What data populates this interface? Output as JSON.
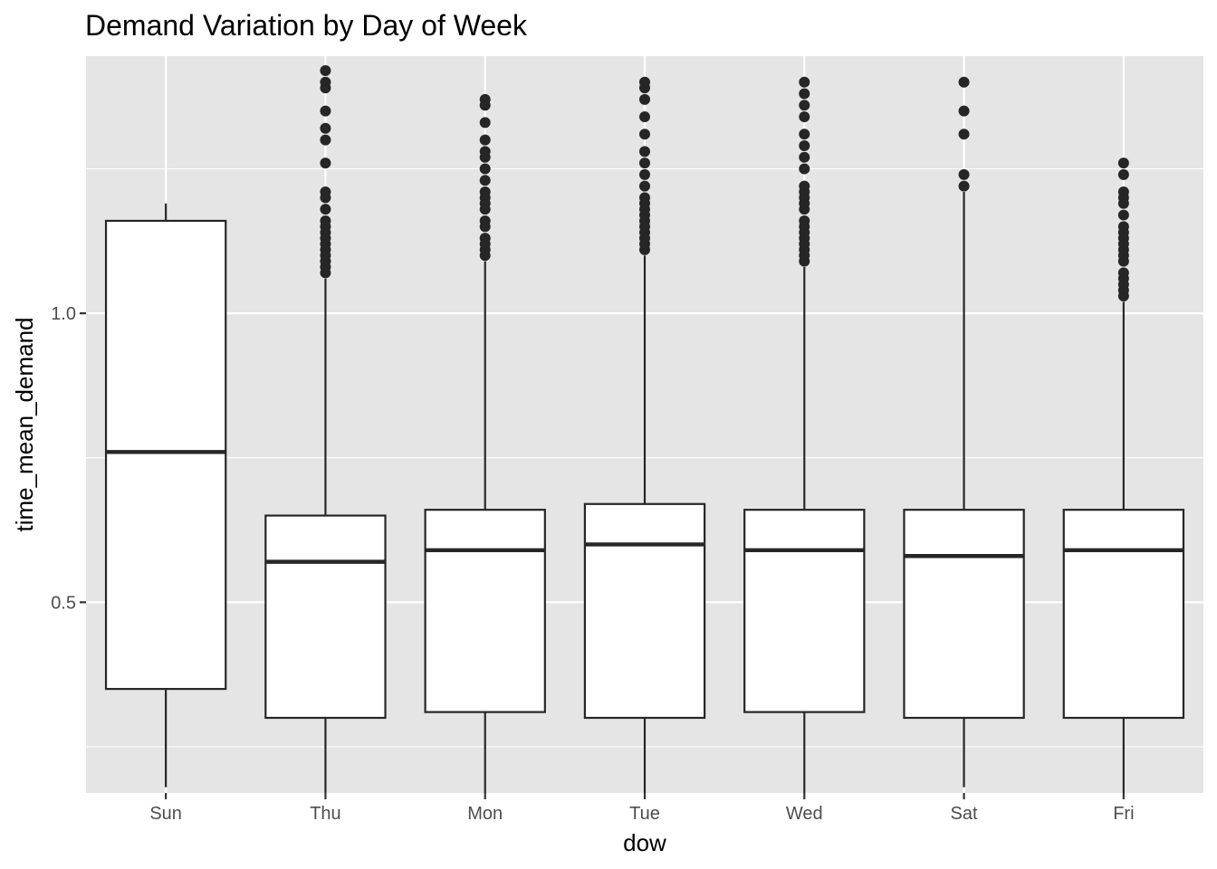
{
  "chart_data": {
    "type": "boxplot",
    "title": "Demand Variation by Day of Week",
    "xlabel": "dow",
    "ylabel": "time_mean_demand",
    "categories": [
      "Sun",
      "Thu",
      "Mon",
      "Tue",
      "Wed",
      "Sat",
      "Fri"
    ],
    "ylim": [
      0.17,
      1.445
    ],
    "yticks": [
      0.5,
      1.0
    ],
    "ytick_labels": [
      "0.5",
      "1.0"
    ],
    "grid": true,
    "legend": "none",
    "colors": {
      "panel_background": "#e5e5e5",
      "grid": "#ffffff",
      "box_fill": "#ffffff",
      "box_line": "#262626",
      "outlier": "#262626"
    },
    "boxes": [
      {
        "category": "Sun",
        "whisker_low": 0.18,
        "q1": 0.35,
        "median": 0.76,
        "q3": 1.16,
        "whisker_high": 1.19,
        "outliers": []
      },
      {
        "category": "Thu",
        "whisker_low": 0.17,
        "q1": 0.3,
        "median": 0.57,
        "q3": 0.65,
        "whisker_high": 1.06,
        "outliers": [
          1.07,
          1.08,
          1.09,
          1.1,
          1.11,
          1.12,
          1.13,
          1.14,
          1.15,
          1.16,
          1.18,
          1.2,
          1.21,
          1.26,
          1.3,
          1.32,
          1.35,
          1.39,
          1.4,
          1.42
        ]
      },
      {
        "category": "Mon",
        "whisker_low": 0.17,
        "q1": 0.31,
        "median": 0.59,
        "q3": 0.66,
        "whisker_high": 1.09,
        "outliers": [
          1.1,
          1.11,
          1.12,
          1.13,
          1.15,
          1.16,
          1.18,
          1.19,
          1.2,
          1.21,
          1.23,
          1.25,
          1.27,
          1.28,
          1.3,
          1.33,
          1.36,
          1.37
        ]
      },
      {
        "category": "Tue",
        "whisker_low": 0.17,
        "q1": 0.3,
        "median": 0.6,
        "q3": 0.67,
        "whisker_high": 1.1,
        "outliers": [
          1.11,
          1.12,
          1.13,
          1.14,
          1.15,
          1.16,
          1.17,
          1.18,
          1.19,
          1.2,
          1.22,
          1.24,
          1.26,
          1.28,
          1.31,
          1.34,
          1.37,
          1.39,
          1.4
        ]
      },
      {
        "category": "Wed",
        "whisker_low": 0.17,
        "q1": 0.31,
        "median": 0.59,
        "q3": 0.66,
        "whisker_high": 1.08,
        "outliers": [
          1.09,
          1.1,
          1.11,
          1.12,
          1.13,
          1.14,
          1.15,
          1.16,
          1.18,
          1.19,
          1.2,
          1.21,
          1.22,
          1.25,
          1.27,
          1.29,
          1.31,
          1.34,
          1.36,
          1.38,
          1.4
        ]
      },
      {
        "category": "Sat",
        "whisker_low": 0.18,
        "q1": 0.3,
        "median": 0.58,
        "q3": 0.66,
        "whisker_high": 1.21,
        "outliers": [
          1.22,
          1.24,
          1.31,
          1.35,
          1.4
        ]
      },
      {
        "category": "Fri",
        "whisker_low": 0.17,
        "q1": 0.3,
        "median": 0.59,
        "q3": 0.66,
        "whisker_high": 1.02,
        "outliers": [
          1.03,
          1.04,
          1.05,
          1.06,
          1.07,
          1.09,
          1.1,
          1.11,
          1.12,
          1.13,
          1.14,
          1.15,
          1.17,
          1.19,
          1.2,
          1.21,
          1.24,
          1.26
        ]
      }
    ]
  }
}
